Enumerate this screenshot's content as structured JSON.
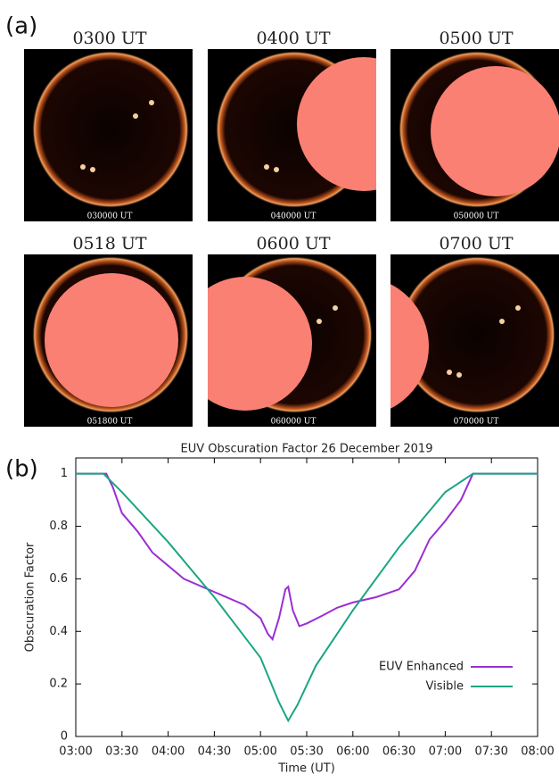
{
  "panels": {
    "a": "(a)",
    "b": "(b)"
  },
  "images": [
    {
      "title": "0300 UT",
      "caption": "030000 UT"
    },
    {
      "title": "0400 UT",
      "caption": "040000 UT"
    },
    {
      "title": "0500 UT",
      "caption": "050000 UT"
    },
    {
      "title": "0518 UT",
      "caption": "051800 UT"
    },
    {
      "title": "0600 UT",
      "caption": "060000 UT"
    },
    {
      "title": "0700 UT",
      "caption": "070000 UT"
    }
  ],
  "chart_data": {
    "type": "line",
    "title": "EUV Obscuration Factor 26 December 2019",
    "x_label": "Time (UT)",
    "y_label": "Obscuration Factor",
    "xlim": [
      3,
      8
    ],
    "xticks": [
      {
        "value": 3,
        "label": "03:00"
      },
      {
        "value": 3.5,
        "label": "03:30"
      },
      {
        "value": 4,
        "label": "04:00"
      },
      {
        "value": 4.5,
        "label": "04:30"
      },
      {
        "value": 5,
        "label": "05:00"
      },
      {
        "value": 5.5,
        "label": "05:30"
      },
      {
        "value": 6,
        "label": "06:00"
      },
      {
        "value": 6.5,
        "label": "06:30"
      },
      {
        "value": 7,
        "label": "07:00"
      },
      {
        "value": 7.5,
        "label": "07:30"
      },
      {
        "value": 8,
        "label": "08:00"
      }
    ],
    "ylim": [
      0,
      1.06
    ],
    "yticks": [
      0,
      0.2,
      0.4,
      0.6,
      0.8,
      1
    ],
    "grid": false,
    "legend": "lower right",
    "series": [
      {
        "name": "EUV Enhanced",
        "color": "#9a2ed3",
        "x": [
          3,
          3.33,
          3.4,
          3.5,
          3.67,
          3.83,
          4,
          4.17,
          4.5,
          4.83,
          5,
          5.08,
          5.13,
          5.2,
          5.27,
          5.3,
          5.35,
          5.42,
          5.5,
          5.67,
          5.83,
          6,
          6.25,
          6.5,
          6.67,
          6.83,
          7,
          7.17,
          7.3,
          8
        ],
        "values": [
          1,
          1,
          0.95,
          0.85,
          0.78,
          0.7,
          0.65,
          0.6,
          0.55,
          0.5,
          0.45,
          0.39,
          0.37,
          0.45,
          0.56,
          0.57,
          0.48,
          0.42,
          0.43,
          0.46,
          0.49,
          0.51,
          0.53,
          0.56,
          0.63,
          0.75,
          0.82,
          0.9,
          1,
          1
        ]
      },
      {
        "name": "Visible",
        "color": "#1ba583",
        "x": [
          3,
          3.3,
          3.5,
          4,
          4.5,
          5,
          5.2,
          5.3,
          5.4,
          5.6,
          6,
          6.5,
          7,
          7.3,
          8
        ],
        "values": [
          1,
          1,
          0.93,
          0.74,
          0.53,
          0.3,
          0.13,
          0.06,
          0.12,
          0.27,
          0.48,
          0.72,
          0.93,
          1,
          1
        ]
      }
    ]
  }
}
